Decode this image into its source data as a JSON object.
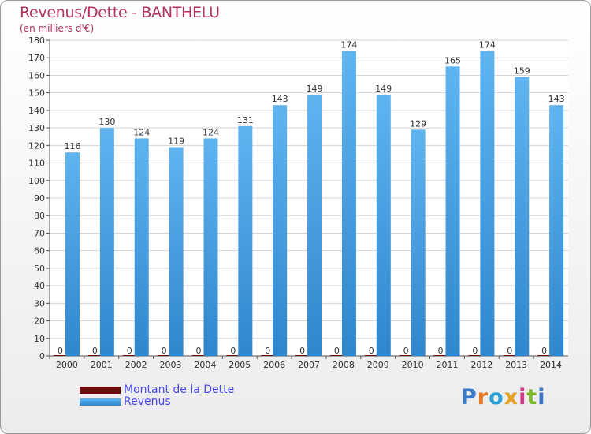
{
  "chart_data": {
    "type": "bar",
    "title": "Revenus/Dette - BANTHELU",
    "subtitle": "(en milliers d'€)",
    "categories": [
      "2000",
      "2001",
      "2002",
      "2003",
      "2004",
      "2005",
      "2006",
      "2007",
      "2008",
      "2009",
      "2010",
      "2011",
      "2012",
      "2013",
      "2014"
    ],
    "series": [
      {
        "name": "Montant de la Dette",
        "color": "#6b0d0d",
        "values": [
          0,
          0,
          0,
          0,
          0,
          0,
          0,
          0,
          0,
          0,
          0,
          0,
          0,
          0,
          0
        ]
      },
      {
        "name": "Revenus",
        "color": "#4aa3e6",
        "values": [
          116,
          130,
          124,
          119,
          124,
          131,
          143,
          149,
          174,
          149,
          129,
          165,
          174,
          159,
          143
        ]
      }
    ],
    "ylim": [
      0,
      180
    ],
    "yticks": [
      0,
      10,
      20,
      30,
      40,
      50,
      60,
      70,
      80,
      90,
      100,
      110,
      120,
      130,
      140,
      150,
      160,
      170,
      180
    ],
    "grid": true,
    "legend": "bottom-left"
  },
  "logo": {
    "text": "Proxiti",
    "letter_colors": [
      "#3a78c8",
      "#e87722",
      "#2aa0d8",
      "#e8a020",
      "#d23a8a",
      "#7ab82a",
      "#3a78c8"
    ]
  }
}
